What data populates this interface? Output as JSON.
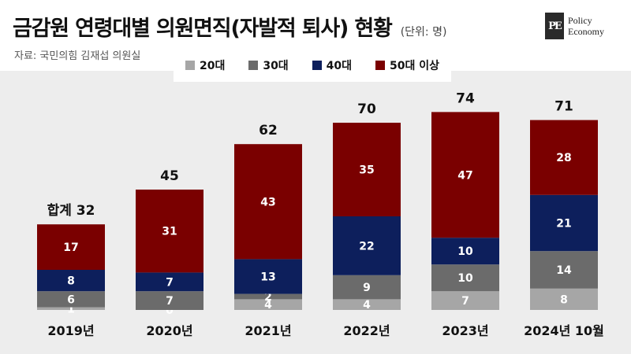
{
  "header": {
    "title": "금감원 연령대별 의원면직(자발적 퇴사) 현황",
    "unit": "(단위: 명)",
    "source": "자료: 국민의힘 김재섭 의원실"
  },
  "logo": {
    "mark": "PE",
    "line1": "Policy",
    "line2": "Economy"
  },
  "chart_data": {
    "type": "bar",
    "stacked": true,
    "categories": [
      "2019년",
      "2020년",
      "2021년",
      "2022년",
      "2023년",
      "2024년 10월"
    ],
    "series": [
      {
        "name": "20대",
        "color": "#a6a6a6",
        "values": [
          1,
          0,
          4,
          4,
          7,
          8
        ]
      },
      {
        "name": "30대",
        "color": "#6b6b6b",
        "values": [
          6,
          7,
          2,
          9,
          10,
          14
        ]
      },
      {
        "name": "40대",
        "color": "#0d1f5c",
        "values": [
          8,
          7,
          13,
          22,
          10,
          21
        ]
      },
      {
        "name": "50대 이상",
        "color": "#7a0000",
        "values": [
          17,
          31,
          43,
          35,
          47,
          28
        ]
      }
    ],
    "totals": [
      32,
      45,
      62,
      70,
      74,
      71
    ],
    "total_labels": [
      "합계 32",
      "45",
      "62",
      "70",
      "74",
      "71"
    ],
    "ylim": [
      0,
      80
    ],
    "grid": false,
    "legend": "top-center"
  }
}
